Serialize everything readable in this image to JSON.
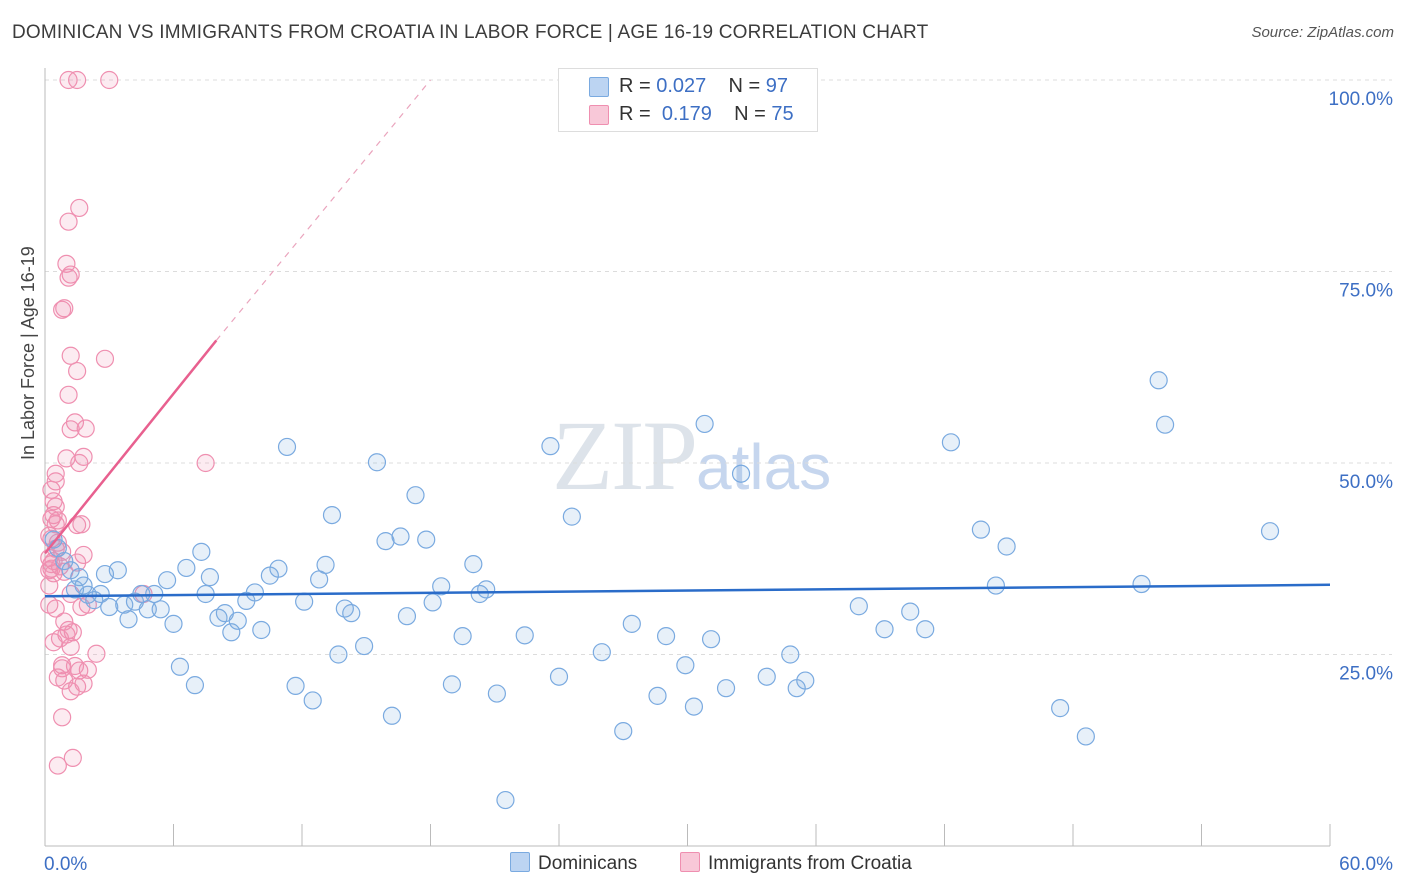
{
  "title": "DOMINICAN VS IMMIGRANTS FROM CROATIA IN LABOR FORCE | AGE 16-19 CORRELATION CHART",
  "source": "Source: ZipAtlas.com",
  "watermark": {
    "zip": "ZIP",
    "atlas": "atlas"
  },
  "colors": {
    "blue": "#7aaae0",
    "blue_line": "#2a6cc9",
    "pink": "#ef8fb0",
    "pink_line": "#e8608f",
    "axis_text": "#3d6fc4"
  },
  "stats": {
    "rows": [
      {
        "r_label": "R =",
        "r_value": "0.027",
        "n_label": "N =",
        "n_value": "97"
      },
      {
        "r_label": "R =",
        "r_value": "0.179",
        "n_label": "N =",
        "n_value": "75"
      }
    ]
  },
  "legend": {
    "items": [
      "Dominicans",
      "Immigrants from Croatia"
    ]
  },
  "chart_data": {
    "type": "scatter",
    "title": "DOMINICAN VS IMMIGRANTS FROM CROATIA IN LABOR FORCE | AGE 16-19 CORRELATION CHART",
    "xlabel": "",
    "ylabel": "In Labor Force | Age 16-19",
    "xlim": [
      0,
      60
    ],
    "ylim": [
      0,
      100
    ],
    "x_ticks": [
      "0.0%",
      "60.0%"
    ],
    "y_ticks": [
      {
        "value": 100,
        "label": "100.0%"
      },
      {
        "value": 75,
        "label": "75.0%"
      },
      {
        "value": 50,
        "label": "50.0%"
      },
      {
        "value": 25,
        "label": "25.0%"
      }
    ],
    "series": [
      {
        "name": "Dominicans",
        "R": 0.027,
        "N": 97,
        "trend": {
          "x0": 0,
          "y0": 32.6,
          "x1": 60,
          "y1": 34.1
        },
        "points": [
          [
            0.4,
            40.0
          ],
          [
            0.6,
            38.9
          ],
          [
            0.9,
            37.2
          ],
          [
            1.2,
            36.0
          ],
          [
            1.4,
            33.5
          ],
          [
            1.6,
            35.1
          ],
          [
            1.8,
            34.0
          ],
          [
            2.0,
            32.8
          ],
          [
            2.3,
            32.1
          ],
          [
            2.6,
            32.9
          ],
          [
            2.8,
            35.5
          ],
          [
            3.0,
            31.2
          ],
          [
            3.4,
            36.0
          ],
          [
            3.7,
            31.5
          ],
          [
            3.9,
            29.6
          ],
          [
            4.2,
            31.9
          ],
          [
            4.5,
            32.9
          ],
          [
            4.8,
            30.9
          ],
          [
            5.1,
            32.9
          ],
          [
            5.4,
            30.9
          ],
          [
            5.7,
            34.7
          ],
          [
            6.0,
            29.0
          ],
          [
            6.3,
            23.4
          ],
          [
            6.6,
            36.3
          ],
          [
            7.0,
            21.0
          ],
          [
            7.3,
            38.4
          ],
          [
            7.5,
            32.9
          ],
          [
            7.7,
            35.1
          ],
          [
            8.1,
            29.8
          ],
          [
            8.4,
            30.4
          ],
          [
            8.7,
            27.9
          ],
          [
            9.0,
            29.4
          ],
          [
            9.4,
            32.0
          ],
          [
            9.8,
            33.1
          ],
          [
            10.1,
            28.2
          ],
          [
            10.5,
            35.3
          ],
          [
            10.9,
            36.2
          ],
          [
            11.3,
            52.1
          ],
          [
            11.7,
            20.9
          ],
          [
            12.1,
            31.9
          ],
          [
            12.5,
            19.0
          ],
          [
            12.8,
            34.8
          ],
          [
            13.1,
            36.7
          ],
          [
            13.4,
            43.2
          ],
          [
            13.7,
            25.0
          ],
          [
            14.0,
            31.0
          ],
          [
            14.3,
            30.4
          ],
          [
            14.9,
            26.1
          ],
          [
            15.5,
            50.1
          ],
          [
            15.9,
            39.8
          ],
          [
            16.2,
            17.0
          ],
          [
            16.6,
            40.4
          ],
          [
            16.9,
            30.0
          ],
          [
            17.3,
            45.8
          ],
          [
            17.8,
            40.0
          ],
          [
            18.1,
            31.8
          ],
          [
            18.5,
            33.9
          ],
          [
            19.0,
            21.1
          ],
          [
            19.5,
            27.4
          ],
          [
            20.0,
            36.8
          ],
          [
            20.3,
            32.9
          ],
          [
            20.6,
            33.5
          ],
          [
            21.1,
            19.9
          ],
          [
            21.5,
            6.0
          ],
          [
            22.4,
            27.5
          ],
          [
            23.6,
            52.2
          ],
          [
            24.0,
            22.1
          ],
          [
            24.6,
            43.0
          ],
          [
            26.0,
            25.3
          ],
          [
            27.0,
            15.0
          ],
          [
            27.4,
            29.0
          ],
          [
            28.6,
            19.6
          ],
          [
            29.0,
            27.4
          ],
          [
            29.9,
            23.6
          ],
          [
            30.3,
            18.2
          ],
          [
            30.8,
            55.1
          ],
          [
            31.1,
            27.0
          ],
          [
            31.8,
            20.6
          ],
          [
            32.5,
            48.6
          ],
          [
            33.7,
            22.1
          ],
          [
            34.8,
            25.0
          ],
          [
            35.1,
            20.6
          ],
          [
            35.5,
            21.6
          ],
          [
            38.0,
            31.3
          ],
          [
            39.2,
            28.3
          ],
          [
            40.4,
            30.6
          ],
          [
            41.1,
            28.3
          ],
          [
            42.3,
            52.7
          ],
          [
            43.7,
            41.3
          ],
          [
            44.4,
            34.0
          ],
          [
            44.9,
            39.1
          ],
          [
            47.4,
            18.0
          ],
          [
            48.6,
            14.3
          ],
          [
            51.2,
            34.2
          ],
          [
            52.0,
            60.8
          ],
          [
            52.3,
            55.0
          ],
          [
            57.2,
            41.1
          ]
        ]
      },
      {
        "name": "Immigrants from Croatia",
        "R": 0.179,
        "N": 75,
        "trend": {
          "x0": 0,
          "y0": 38.2,
          "x1": 8,
          "y1": 66.0,
          "dash_x1": 18,
          "dash_y1": 100.0
        },
        "points": [
          [
            1.1,
            100.0
          ],
          [
            1.5,
            100.0
          ],
          [
            3.0,
            100.0
          ],
          [
            1.6,
            83.3
          ],
          [
            1.1,
            81.5
          ],
          [
            1.0,
            76.0
          ],
          [
            1.1,
            74.2
          ],
          [
            1.2,
            74.6
          ],
          [
            0.8,
            70.0
          ],
          [
            0.9,
            70.2
          ],
          [
            2.8,
            63.6
          ],
          [
            1.2,
            64.0
          ],
          [
            1.5,
            62.0
          ],
          [
            1.1,
            58.9
          ],
          [
            1.4,
            55.3
          ],
          [
            1.9,
            54.5
          ],
          [
            1.2,
            54.4
          ],
          [
            1.8,
            50.8
          ],
          [
            1.0,
            50.6
          ],
          [
            1.6,
            50.0
          ],
          [
            7.5,
            50.0
          ],
          [
            0.5,
            48.6
          ],
          [
            0.5,
            47.6
          ],
          [
            0.3,
            46.5
          ],
          [
            0.4,
            45.0
          ],
          [
            0.5,
            44.3
          ],
          [
            0.4,
            43.2
          ],
          [
            0.3,
            42.7
          ],
          [
            0.6,
            42.5
          ],
          [
            0.5,
            42.0
          ],
          [
            1.5,
            41.9
          ],
          [
            1.7,
            42.0
          ],
          [
            0.2,
            40.5
          ],
          [
            0.3,
            40.1
          ],
          [
            0.6,
            39.6
          ],
          [
            0.8,
            38.4
          ],
          [
            1.8,
            38.0
          ],
          [
            0.2,
            37.6
          ],
          [
            0.4,
            37.2
          ],
          [
            0.3,
            36.8
          ],
          [
            0.7,
            36.5
          ],
          [
            1.5,
            37.0
          ],
          [
            0.2,
            36.0
          ],
          [
            0.4,
            35.6
          ],
          [
            0.9,
            35.8
          ],
          [
            0.2,
            34.0
          ],
          [
            1.2,
            32.9
          ],
          [
            4.6,
            32.9
          ],
          [
            0.2,
            31.5
          ],
          [
            0.5,
            31.0
          ],
          [
            1.7,
            31.2
          ],
          [
            2.0,
            31.5
          ],
          [
            0.9,
            29.3
          ],
          [
            1.1,
            28.2
          ],
          [
            1.0,
            27.6
          ],
          [
            1.3,
            27.9
          ],
          [
            0.7,
            27.1
          ],
          [
            0.4,
            26.6
          ],
          [
            1.2,
            26.0
          ],
          [
            2.4,
            25.1
          ],
          [
            0.8,
            23.6
          ],
          [
            1.4,
            23.5
          ],
          [
            0.8,
            23.2
          ],
          [
            1.6,
            22.9
          ],
          [
            2.0,
            23.0
          ],
          [
            0.6,
            22.0
          ],
          [
            0.9,
            21.6
          ],
          [
            1.8,
            21.2
          ],
          [
            1.5,
            20.8
          ],
          [
            1.2,
            20.2
          ],
          [
            0.8,
            16.8
          ],
          [
            1.3,
            11.5
          ],
          [
            0.6,
            10.5
          ],
          [
            0.3,
            36.2
          ],
          [
            0.5,
            38.8
          ]
        ]
      }
    ]
  }
}
